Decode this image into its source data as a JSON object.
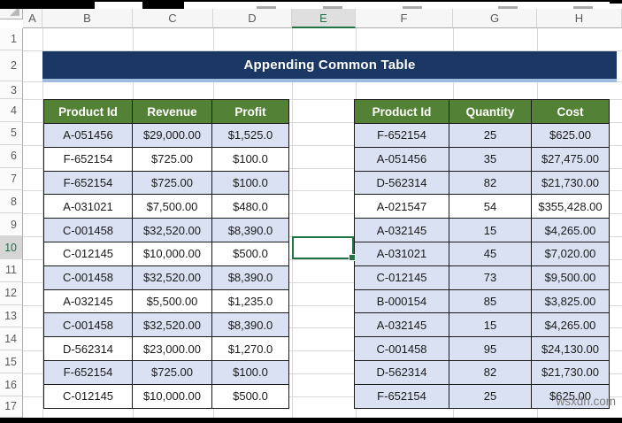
{
  "spreadsheet": {
    "title": "Appending Common Table",
    "column_headers": [
      "A",
      "B",
      "C",
      "D",
      "E",
      "F",
      "G",
      "H"
    ],
    "row_headers": [
      "1",
      "2",
      "3",
      "4",
      "5",
      "6",
      "7",
      "8",
      "9",
      "10",
      "11",
      "12",
      "13",
      "14",
      "15",
      "16",
      "17"
    ],
    "selected_column": "E",
    "selected_row": "10",
    "selected_cell": "E10"
  },
  "left_table": {
    "headers": [
      "Product Id",
      "Revenue",
      "Profit"
    ],
    "rows": [
      [
        "A-051456",
        "$29,000.00",
        "$1,525.0"
      ],
      [
        "F-652154",
        "$725.00",
        "$100.0"
      ],
      [
        "F-652154",
        "$725.00",
        "$100.0"
      ],
      [
        "A-031021",
        "$7,500.00",
        "$480.0"
      ],
      [
        "C-001458",
        "$32,520.00",
        "$8,390.0"
      ],
      [
        "C-012145",
        "$10,000.00",
        "$500.0"
      ],
      [
        "C-001458",
        "$32,520.00",
        "$8,390.0"
      ],
      [
        "A-032145",
        "$5,500.00",
        "$1,235.0"
      ],
      [
        "C-001458",
        "$32,520.00",
        "$8,390.0"
      ],
      [
        "D-562314",
        "$23,000.00",
        "$1,270.0"
      ],
      [
        "F-652154",
        "$725.00",
        "$100.0"
      ],
      [
        "C-012145",
        "$10,000.00",
        "$500.0"
      ]
    ],
    "row_shaded": [
      true,
      false,
      true,
      false,
      true,
      false,
      true,
      false,
      true,
      false,
      true,
      false
    ]
  },
  "right_table": {
    "headers": [
      "Product Id",
      "Quantity",
      "Cost"
    ],
    "rows": [
      [
        "F-652154",
        "25",
        "$625.00"
      ],
      [
        "A-051456",
        "35",
        "$27,475.00"
      ],
      [
        "D-562314",
        "82",
        "$21,730.00"
      ],
      [
        "A-021547",
        "54",
        "$355,428.00"
      ],
      [
        "A-032145",
        "15",
        "$4,265.00"
      ],
      [
        "A-031021",
        "45",
        "$7,020.00"
      ],
      [
        "C-012145",
        "73",
        "$9,500.00"
      ],
      [
        "B-000154",
        "85",
        "$3,825.00"
      ],
      [
        "A-032145",
        "15",
        "$4,265.00"
      ],
      [
        "C-001458",
        "95",
        "$24,130.00"
      ],
      [
        "D-562314",
        "82",
        "$21,730.00"
      ],
      [
        "F-652154",
        "25",
        "$625.00"
      ]
    ],
    "row_shaded": [
      true,
      true,
      true,
      false,
      true,
      true,
      true,
      true,
      true,
      true,
      true,
      true
    ]
  },
  "watermark": "wsxdn.com",
  "colors": {
    "table_header_green": "#538135",
    "title_navy": "#1b3763",
    "title_underline_blue": "#9fbce1",
    "shaded_row_blue": "#d9e1f2",
    "selection_green": "#217346",
    "table_border": "#1a1a1a"
  }
}
